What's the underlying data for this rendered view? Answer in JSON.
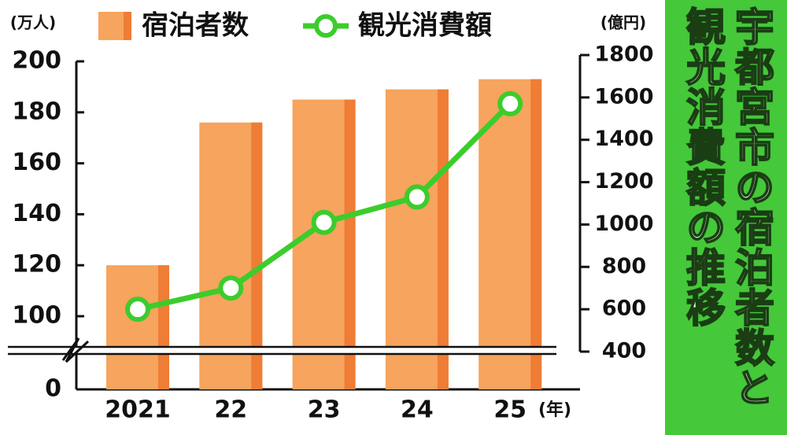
{
  "chart_data": {
    "type": "bar_line",
    "title": "宇都宮市の宿泊者数と観光消費額の推移",
    "y_unit": "(万人)",
    "y2_unit": "(億円)",
    "x_unit": "(年)",
    "categories": [
      "2021",
      "22",
      "23",
      "24",
      "25"
    ],
    "series": [
      {
        "name": "宿泊者数",
        "type": "bar",
        "color": "#f6a45e",
        "values": [
          120,
          176,
          185,
          189,
          193
        ]
      },
      {
        "name": "観光消費額",
        "type": "line",
        "axis": "y2",
        "color": "#3ccc2c",
        "values": [
          600,
          700,
          1010,
          1130,
          1570
        ]
      }
    ],
    "ylim": [
      0,
      200
    ],
    "axis_break": [
      0,
      100
    ],
    "yticks": [
      0,
      100,
      120,
      140,
      160,
      180,
      200
    ],
    "y2lim": [
      400,
      1800
    ],
    "y2ticks": [
      400,
      600,
      800,
      1000,
      1200,
      1400,
      1600,
      1800
    ]
  }
}
